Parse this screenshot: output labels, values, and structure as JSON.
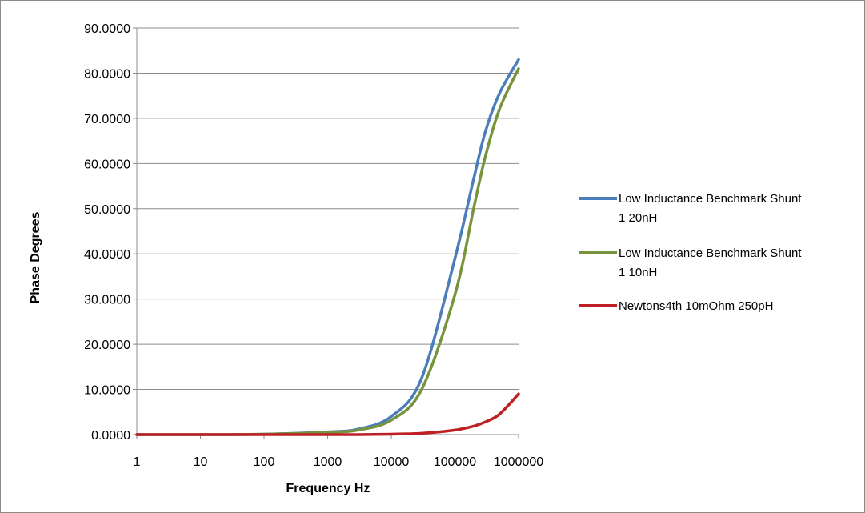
{
  "chart_data": {
    "type": "line",
    "title": "",
    "xlabel": "Frequency Hz",
    "ylabel": "Phase Degrees",
    "x_scale": "log",
    "xlim": [
      1,
      1000000
    ],
    "ylim": [
      0,
      90
    ],
    "x_ticks": [
      "1",
      "10",
      "100",
      "1000",
      "10000",
      "100000",
      "1000000"
    ],
    "y_ticks": [
      "0.0000",
      "10.0000",
      "20.0000",
      "30.0000",
      "40.0000",
      "50.0000",
      "60.0000",
      "70.0000",
      "80.0000",
      "90.0000"
    ],
    "grid": "horizontal major gridlines",
    "legend_position": "right",
    "x": [
      1,
      10,
      100,
      1000,
      3000,
      10000,
      30000,
      100000,
      200000,
      300000,
      500000,
      1000000
    ],
    "series": [
      {
        "name": "Low Inductance Benchmark Shunt 1 20nH",
        "legend_lines": [
          "Low Inductance Benchmark Shunt",
          "1 20nH"
        ],
        "color": "#4a7ebb",
        "values": [
          0.0,
          0.0,
          0.1,
          0.6,
          1.2,
          4.0,
          12.5,
          39.0,
          57.0,
          67.0,
          75.5,
          83.0
        ]
      },
      {
        "name": "Low Inductance Benchmark Shunt 1 10nH",
        "legend_lines": [
          "Low Inductance Benchmark Shunt",
          "1 10nH"
        ],
        "color": "#77933c",
        "values": [
          0.0,
          0.0,
          0.1,
          0.5,
          1.0,
          3.2,
          10.0,
          31.0,
          50.5,
          61.5,
          72.0,
          81.0
        ]
      },
      {
        "name": "Newtons4th 10mOhm 250pH",
        "legend_lines": [
          "Newtons4th 10mOhm 250pH"
        ],
        "color": "#be2025",
        "values": [
          0.0,
          0.0,
          0.0,
          0.0,
          0.0,
          0.1,
          0.3,
          1.0,
          1.9,
          2.8,
          4.5,
          9.0
        ]
      }
    ]
  }
}
